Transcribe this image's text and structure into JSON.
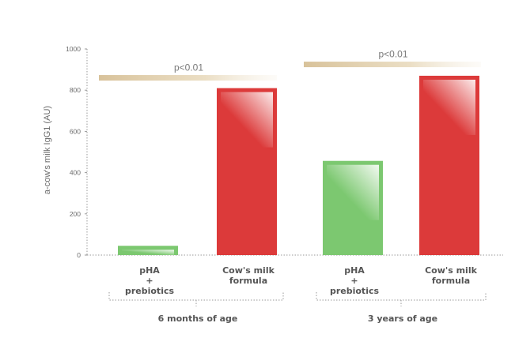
{
  "chart_data": {
    "type": "bar",
    "ylabel": "a-cow's milk IgG1 (AU)",
    "ylim": [
      0,
      1000
    ],
    "yticks": [
      "0",
      "200",
      "400",
      "600",
      "800",
      "1000"
    ],
    "bars": [
      {
        "category": [
          "pHA",
          "+",
          "prebiotics"
        ],
        "group": "6 months of age",
        "value": 45,
        "color": "#7cc870"
      },
      {
        "category": [
          "Cow's milk",
          "formula"
        ],
        "group": "6 months of age",
        "value": 810,
        "color": "#dc3a3a"
      },
      {
        "category": [
          "pHA",
          "+",
          "prebiotics"
        ],
        "group": "3 years of age",
        "value": 457,
        "color": "#7cc870"
      },
      {
        "category": [
          "Cow's milk",
          "formula"
        ],
        "group": "3 years of age",
        "value": 870,
        "color": "#dc3a3a"
      }
    ],
    "groups": [
      "6 months of age",
      "3 years of age"
    ],
    "significance": [
      {
        "group": "6 months of age",
        "label": "p<0.01",
        "level": 860
      },
      {
        "group": "3 years of age",
        "label": "p<0.01",
        "level": 925
      }
    ],
    "grid": false,
    "colors": {
      "green": "#7cc870",
      "red": "#dc3a3a",
      "sig_bar": "#d8c29a",
      "axis": "#9a9a9a"
    }
  }
}
